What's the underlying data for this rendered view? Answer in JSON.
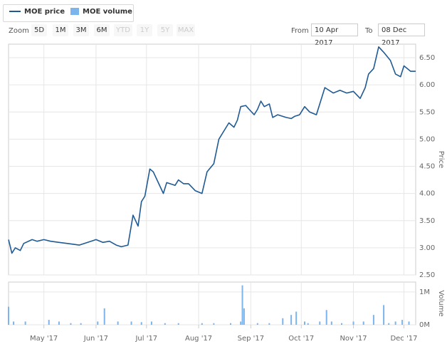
{
  "legend": {
    "price_label": "MOE price",
    "volume_label": "MOE volume"
  },
  "zoom": {
    "label": "Zoom",
    "buttons": [
      {
        "label": "5D",
        "enabled": true
      },
      {
        "label": "1M",
        "enabled": true
      },
      {
        "label": "3M",
        "enabled": true
      },
      {
        "label": "6M",
        "enabled": true
      },
      {
        "label": "YTD",
        "enabled": false
      },
      {
        "label": "1Y",
        "enabled": false
      },
      {
        "label": "5Y",
        "enabled": false
      },
      {
        "label": "MAX",
        "enabled": false
      }
    ]
  },
  "range": {
    "from_label": "From",
    "from_value": "10 Apr 2017",
    "to_label": "To",
    "to_value": "08 Dec 2017"
  },
  "colors": {
    "price_line": "#1f5a94",
    "volume_bar": "#7cb5ec",
    "grid": "#e6e6e6",
    "axis_text": "#666666"
  },
  "chart_data": [
    {
      "type": "line",
      "series": [
        {
          "name": "MOE price",
          "x": [
            "2017-04-10",
            "2017-04-12",
            "2017-04-14",
            "2017-04-17",
            "2017-04-19",
            "2017-04-24",
            "2017-04-27",
            "2017-05-01",
            "2017-05-05",
            "2017-05-10",
            "2017-05-15",
            "2017-05-22",
            "2017-05-29",
            "2017-06-01",
            "2017-06-05",
            "2017-06-09",
            "2017-06-13",
            "2017-06-16",
            "2017-06-20",
            "2017-06-23",
            "2017-06-26",
            "2017-06-28",
            "2017-06-30",
            "2017-07-03",
            "2017-07-05",
            "2017-07-08",
            "2017-07-11",
            "2017-07-13",
            "2017-07-15",
            "2017-07-18",
            "2017-07-20",
            "2017-07-23",
            "2017-07-26",
            "2017-07-30",
            "2017-08-03",
            "2017-08-06",
            "2017-08-10",
            "2017-08-13",
            "2017-08-16",
            "2017-08-19",
            "2017-08-22",
            "2017-08-24",
            "2017-08-26",
            "2017-08-29",
            "2017-08-31",
            "2017-09-03",
            "2017-09-05",
            "2017-09-07",
            "2017-09-09",
            "2017-09-12",
            "2017-09-14",
            "2017-09-17",
            "2017-09-20",
            "2017-09-22",
            "2017-09-25",
            "2017-09-27",
            "2017-09-30",
            "2017-10-03",
            "2017-10-06",
            "2017-10-10",
            "2017-10-15",
            "2017-10-20",
            "2017-10-24",
            "2017-10-28",
            "2017-11-01",
            "2017-11-05",
            "2017-11-08",
            "2017-11-10",
            "2017-11-13",
            "2017-11-16",
            "2017-11-19",
            "2017-11-23",
            "2017-11-26",
            "2017-11-29",
            "2017-12-01",
            "2017-12-03",
            "2017-12-05",
            "2017-12-08"
          ],
          "y": [
            3.15,
            2.9,
            3.0,
            2.95,
            3.08,
            3.15,
            3.12,
            3.15,
            3.12,
            3.1,
            3.08,
            3.05,
            3.12,
            3.15,
            3.1,
            3.12,
            3.05,
            3.02,
            3.05,
            3.6,
            3.4,
            3.85,
            3.95,
            4.45,
            4.4,
            4.2,
            4.0,
            4.2,
            4.18,
            4.15,
            4.25,
            4.18,
            4.18,
            4.05,
            4.0,
            4.4,
            4.55,
            5.0,
            5.15,
            5.3,
            5.22,
            5.35,
            5.6,
            5.62,
            5.55,
            5.45,
            5.55,
            5.7,
            5.6,
            5.65,
            5.4,
            5.45,
            5.42,
            5.4,
            5.38,
            5.42,
            5.45,
            5.6,
            5.5,
            5.45,
            5.95,
            5.85,
            5.9,
            5.85,
            5.88,
            5.75,
            5.95,
            6.2,
            6.3,
            6.7,
            6.6,
            6.45,
            6.2,
            6.15,
            6.35,
            6.3,
            6.25,
            6.25
          ]
        }
      ],
      "ylabel": "Price",
      "ylim": [
        2.5,
        6.75
      ],
      "yticks": [
        2.5,
        3.0,
        3.5,
        4.0,
        4.5,
        5.0,
        5.5,
        6.0,
        6.5
      ],
      "ytick_labels": [
        "2.50",
        "3.00",
        "3.50",
        "4.00",
        "4.50",
        "5.00",
        "5.50",
        "6.00",
        "6.50"
      ],
      "grid": true
    },
    {
      "type": "bar",
      "series": [
        {
          "name": "MOE volume",
          "x": [
            "2017-04-10",
            "2017-04-13",
            "2017-04-20",
            "2017-05-04",
            "2017-05-10",
            "2017-05-17",
            "2017-05-23",
            "2017-06-02",
            "2017-06-06",
            "2017-06-14",
            "2017-06-22",
            "2017-06-28",
            "2017-07-04",
            "2017-07-12",
            "2017-07-20",
            "2017-08-03",
            "2017-08-10",
            "2017-08-20",
            "2017-08-26",
            "2017-08-27",
            "2017-08-28",
            "2017-09-05",
            "2017-09-12",
            "2017-09-20",
            "2017-09-25",
            "2017-09-28",
            "2017-10-03",
            "2017-10-05",
            "2017-10-12",
            "2017-10-16",
            "2017-10-19",
            "2017-10-25",
            "2017-11-01",
            "2017-11-07",
            "2017-11-13",
            "2017-11-19",
            "2017-11-22",
            "2017-11-26",
            "2017-11-30",
            "2017-12-04"
          ],
          "values": [
            0.55,
            0.1,
            0.1,
            0.15,
            0.1,
            0.05,
            0.05,
            0.1,
            0.5,
            0.1,
            0.1,
            0.08,
            0.1,
            0.05,
            0.05,
            0.05,
            0.05,
            0.05,
            0.1,
            1.2,
            0.5,
            0.05,
            0.05,
            0.2,
            0.3,
            0.4,
            0.1,
            0.05,
            0.1,
            0.45,
            0.1,
            0.05,
            0.1,
            0.1,
            0.3,
            0.6,
            0.05,
            0.1,
            0.15,
            0.1
          ]
        }
      ],
      "ylabel": "Volume",
      "ylim": [
        0,
        1.3
      ],
      "yticks": [
        0,
        1
      ],
      "ytick_labels": [
        "0M",
        "1M"
      ],
      "grid": true
    }
  ],
  "xaxis": {
    "range": [
      "2017-04-10",
      "2017-12-08"
    ],
    "ticks": [
      "2017-05-01",
      "2017-06-01",
      "2017-07-01",
      "2017-08-01",
      "2017-09-01",
      "2017-10-01",
      "2017-11-01",
      "2017-12-01"
    ],
    "tick_labels": [
      "May '17",
      "Jun '17",
      "Jul '17",
      "Aug '17",
      "Sep '17",
      "Oct '17",
      "Nov '17",
      "Dec '17"
    ]
  }
}
